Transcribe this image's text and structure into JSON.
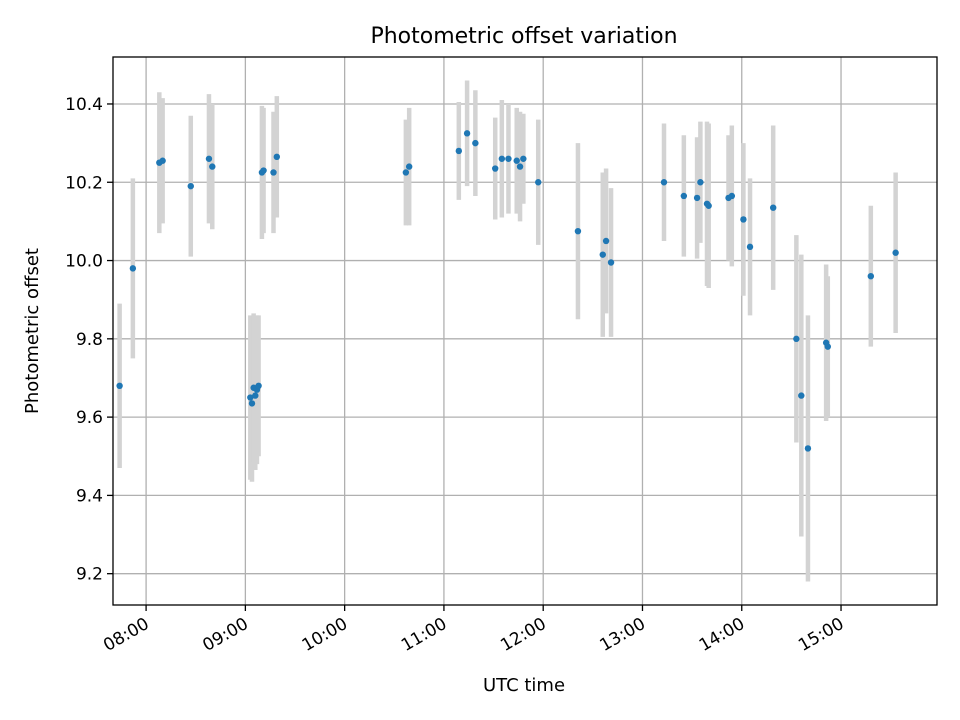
{
  "chart_data": {
    "type": "scatter",
    "title": "Photometric offset variation",
    "xlabel": "UTC time",
    "ylabel": "Photometric offset",
    "xlim": [
      "07:40",
      "15:58"
    ],
    "ylim": [
      9.12,
      10.52
    ],
    "grid": true,
    "x_ticks": [
      "08:00",
      "09:00",
      "10:00",
      "11:00",
      "12:00",
      "13:00",
      "14:00",
      "15:00"
    ],
    "y_ticks": [
      9.2,
      9.4,
      9.6,
      9.8,
      10.0,
      10.2,
      10.4
    ],
    "y_tick_labels": [
      "9.2",
      "9.4",
      "9.6",
      "9.8",
      "10.0",
      "10.2",
      "10.4"
    ],
    "colors": {
      "marker": "#1f77b4",
      "errorbar": "#d3d3d3"
    },
    "series": [
      {
        "points": [
          {
            "x": "07:44",
            "y": 9.68,
            "err": 0.21
          },
          {
            "x": "07:52",
            "y": 9.98,
            "err": 0.23
          },
          {
            "x": "08:08",
            "y": 10.25,
            "err": 0.18
          },
          {
            "x": "08:10",
            "y": 10.255,
            "err": 0.16
          },
          {
            "x": "08:27",
            "y": 10.19,
            "err": 0.18
          },
          {
            "x": "08:38",
            "y": 10.26,
            "err": 0.165
          },
          {
            "x": "08:40",
            "y": 10.24,
            "err": 0.16
          },
          {
            "x": "09:03",
            "y": 9.65,
            "err": 0.21
          },
          {
            "x": "09:04",
            "y": 9.635,
            "err": 0.2
          },
          {
            "x": "09:05",
            "y": 9.675,
            "err": 0.19
          },
          {
            "x": "09:06",
            "y": 9.655,
            "err": 0.19
          },
          {
            "x": "09:07",
            "y": 9.67,
            "err": 0.19
          },
          {
            "x": "09:08",
            "y": 9.68,
            "err": 0.18
          },
          {
            "x": "09:10",
            "y": 10.225,
            "err": 0.17
          },
          {
            "x": "09:11",
            "y": 10.23,
            "err": 0.16
          },
          {
            "x": "09:17",
            "y": 10.225,
            "err": 0.155
          },
          {
            "x": "09:19",
            "y": 10.265,
            "err": 0.155
          },
          {
            "x": "10:37",
            "y": 10.225,
            "err": 0.135
          },
          {
            "x": "10:39",
            "y": 10.24,
            "err": 0.15
          },
          {
            "x": "11:09",
            "y": 10.28,
            "err": 0.125
          },
          {
            "x": "11:14",
            "y": 10.325,
            "err": 0.135
          },
          {
            "x": "11:19",
            "y": 10.3,
            "err": 0.135
          },
          {
            "x": "11:31",
            "y": 10.235,
            "err": 0.13
          },
          {
            "x": "11:35",
            "y": 10.26,
            "err": 0.15
          },
          {
            "x": "11:39",
            "y": 10.26,
            "err": 0.14
          },
          {
            "x": "11:44",
            "y": 10.255,
            "err": 0.135
          },
          {
            "x": "11:46",
            "y": 10.24,
            "err": 0.14
          },
          {
            "x": "11:48",
            "y": 10.26,
            "err": 0.115
          },
          {
            "x": "11:57",
            "y": 10.2,
            "err": 0.16
          },
          {
            "x": "12:21",
            "y": 10.075,
            "err": 0.225
          },
          {
            "x": "12:36",
            "y": 10.015,
            "err": 0.21
          },
          {
            "x": "12:38",
            "y": 10.05,
            "err": 0.185
          },
          {
            "x": "12:41",
            "y": 9.995,
            "err": 0.19
          },
          {
            "x": "13:13",
            "y": 10.2,
            "err": 0.15
          },
          {
            "x": "13:25",
            "y": 10.165,
            "err": 0.155
          },
          {
            "x": "13:33",
            "y": 10.16,
            "err": 0.155
          },
          {
            "x": "13:35",
            "y": 10.2,
            "err": 0.155
          },
          {
            "x": "13:39",
            "y": 10.145,
            "err": 0.21
          },
          {
            "x": "13:40",
            "y": 10.14,
            "err": 0.21
          },
          {
            "x": "13:52",
            "y": 10.16,
            "err": 0.16
          },
          {
            "x": "13:54",
            "y": 10.165,
            "err": 0.18
          },
          {
            "x": "14:01",
            "y": 10.105,
            "err": 0.195
          },
          {
            "x": "14:05",
            "y": 10.035,
            "err": 0.175
          },
          {
            "x": "14:19",
            "y": 10.135,
            "err": 0.21
          },
          {
            "x": "14:33",
            "y": 9.8,
            "err": 0.265
          },
          {
            "x": "14:36",
            "y": 9.655,
            "err": 0.36
          },
          {
            "x": "14:40",
            "y": 9.52,
            "err": 0.34
          },
          {
            "x": "14:51",
            "y": 9.79,
            "err": 0.2
          },
          {
            "x": "14:52",
            "y": 9.78,
            "err": 0.18
          },
          {
            "x": "15:18",
            "y": 9.96,
            "err": 0.18
          },
          {
            "x": "15:33",
            "y": 10.02,
            "err": 0.205
          }
        ]
      }
    ]
  }
}
